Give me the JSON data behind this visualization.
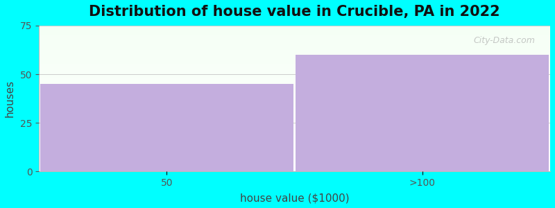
{
  "title": "Distribution of house value in Crucible, PA in 2022",
  "xlabel": "house value ($1000)",
  "ylabel": "houses",
  "categories": [
    "50",
    ">100"
  ],
  "values": [
    45,
    60
  ],
  "bar_color": "#c4aede",
  "ylim": [
    0,
    75
  ],
  "yticks": [
    0,
    25,
    50,
    75
  ],
  "background_color": "#00ffff",
  "title_fontsize": 15,
  "label_fontsize": 11,
  "tick_fontsize": 10,
  "watermark": "City-Data.com"
}
